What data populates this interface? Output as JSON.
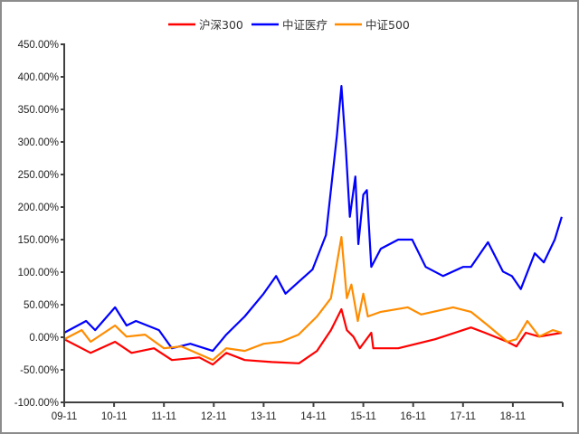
{
  "chart_data": {
    "type": "line",
    "title": "",
    "xlabel": "",
    "ylabel": "",
    "x_unit": "years since 09-11",
    "xlim": [
      0,
      10
    ],
    "ylim": [
      -100,
      450
    ],
    "y_ticks": [
      -100,
      -50,
      0,
      50,
      100,
      150,
      200,
      250,
      300,
      350,
      400,
      450
    ],
    "y_tick_labels": [
      "-100.00%",
      "-50.00%",
      "0.00%",
      "50.00%",
      "100.00%",
      "150.00%",
      "200.00%",
      "250.00%",
      "300.00%",
      "350.00%",
      "400.00%",
      "450.00%"
    ],
    "x_ticks": [
      0,
      1,
      2,
      3,
      4,
      5,
      6,
      7,
      8,
      9
    ],
    "x_tick_labels": [
      "09-11",
      "10-11",
      "11-11",
      "12-11",
      "13-11",
      "14-11",
      "15-11",
      "16-11",
      "17-11",
      "18-11"
    ],
    "grid": false,
    "legend_position": "top-center",
    "series": [
      {
        "name": "沪深300",
        "color": "#ff0000",
        "points": [
          [
            0,
            -3
          ],
          [
            0.53,
            -24
          ],
          [
            1.02,
            -7
          ],
          [
            1.35,
            -24
          ],
          [
            1.8,
            -17
          ],
          [
            2.16,
            -35
          ],
          [
            2.71,
            -31
          ],
          [
            2.98,
            -42
          ],
          [
            3.25,
            -24
          ],
          [
            3.62,
            -35
          ],
          [
            4.16,
            -38
          ],
          [
            4.71,
            -40
          ],
          [
            5.07,
            -21
          ],
          [
            5.35,
            11
          ],
          [
            5.56,
            43
          ],
          [
            5.67,
            11
          ],
          [
            5.8,
            1
          ],
          [
            5.93,
            -17
          ],
          [
            6.16,
            7
          ],
          [
            6.2,
            -17
          ],
          [
            6.7,
            -17
          ],
          [
            7.44,
            -3
          ],
          [
            8.16,
            15
          ],
          [
            8.44,
            7
          ],
          [
            8.89,
            -7
          ],
          [
            9.07,
            -14
          ],
          [
            9.26,
            7
          ],
          [
            9.53,
            1
          ],
          [
            9.98,
            7
          ]
        ]
      },
      {
        "name": "中证医疗",
        "color": "#0000ff",
        "points": [
          [
            0,
            7
          ],
          [
            0.44,
            25
          ],
          [
            0.62,
            11
          ],
          [
            1.02,
            46
          ],
          [
            1.25,
            18
          ],
          [
            1.44,
            25
          ],
          [
            1.9,
            11
          ],
          [
            2.16,
            -17
          ],
          [
            2.53,
            -10
          ],
          [
            2.98,
            -21
          ],
          [
            3.25,
            4
          ],
          [
            3.62,
            32
          ],
          [
            4.0,
            67
          ],
          [
            4.25,
            94
          ],
          [
            4.44,
            67
          ],
          [
            4.7,
            85
          ],
          [
            4.98,
            104
          ],
          [
            5.25,
            157
          ],
          [
            5.47,
            310
          ],
          [
            5.56,
            386
          ],
          [
            5.65,
            289
          ],
          [
            5.73,
            185
          ],
          [
            5.84,
            247
          ],
          [
            5.9,
            143
          ],
          [
            6.0,
            219
          ],
          [
            6.07,
            226
          ],
          [
            6.16,
            108
          ],
          [
            6.35,
            136
          ],
          [
            6.7,
            150
          ],
          [
            6.98,
            150
          ],
          [
            7.25,
            108
          ],
          [
            7.6,
            94
          ],
          [
            8.0,
            108
          ],
          [
            8.16,
            108
          ],
          [
            8.5,
            146
          ],
          [
            8.8,
            101
          ],
          [
            8.98,
            94
          ],
          [
            9.16,
            74
          ],
          [
            9.44,
            129
          ],
          [
            9.62,
            115
          ],
          [
            9.84,
            150
          ],
          [
            9.98,
            185
          ]
        ]
      },
      {
        "name": "中证500",
        "color": "#ff8c00",
        "points": [
          [
            0,
            -3
          ],
          [
            0.35,
            11
          ],
          [
            0.53,
            -7
          ],
          [
            1.02,
            18
          ],
          [
            1.25,
            1
          ],
          [
            1.62,
            4
          ],
          [
            2.0,
            -17
          ],
          [
            2.35,
            -14
          ],
          [
            2.98,
            -35
          ],
          [
            3.25,
            -17
          ],
          [
            3.62,
            -21
          ],
          [
            4.0,
            -10
          ],
          [
            4.35,
            -7
          ],
          [
            4.7,
            4
          ],
          [
            5.07,
            32
          ],
          [
            5.35,
            60
          ],
          [
            5.56,
            154
          ],
          [
            5.67,
            60
          ],
          [
            5.76,
            81
          ],
          [
            5.89,
            25
          ],
          [
            6.0,
            67
          ],
          [
            6.09,
            32
          ],
          [
            6.35,
            39
          ],
          [
            6.89,
            46
          ],
          [
            7.16,
            35
          ],
          [
            7.8,
            46
          ],
          [
            8.16,
            39
          ],
          [
            8.5,
            18
          ],
          [
            8.89,
            -7
          ],
          [
            9.07,
            -3
          ],
          [
            9.29,
            25
          ],
          [
            9.53,
            1
          ],
          [
            9.8,
            11
          ],
          [
            9.98,
            7
          ]
        ]
      }
    ]
  }
}
